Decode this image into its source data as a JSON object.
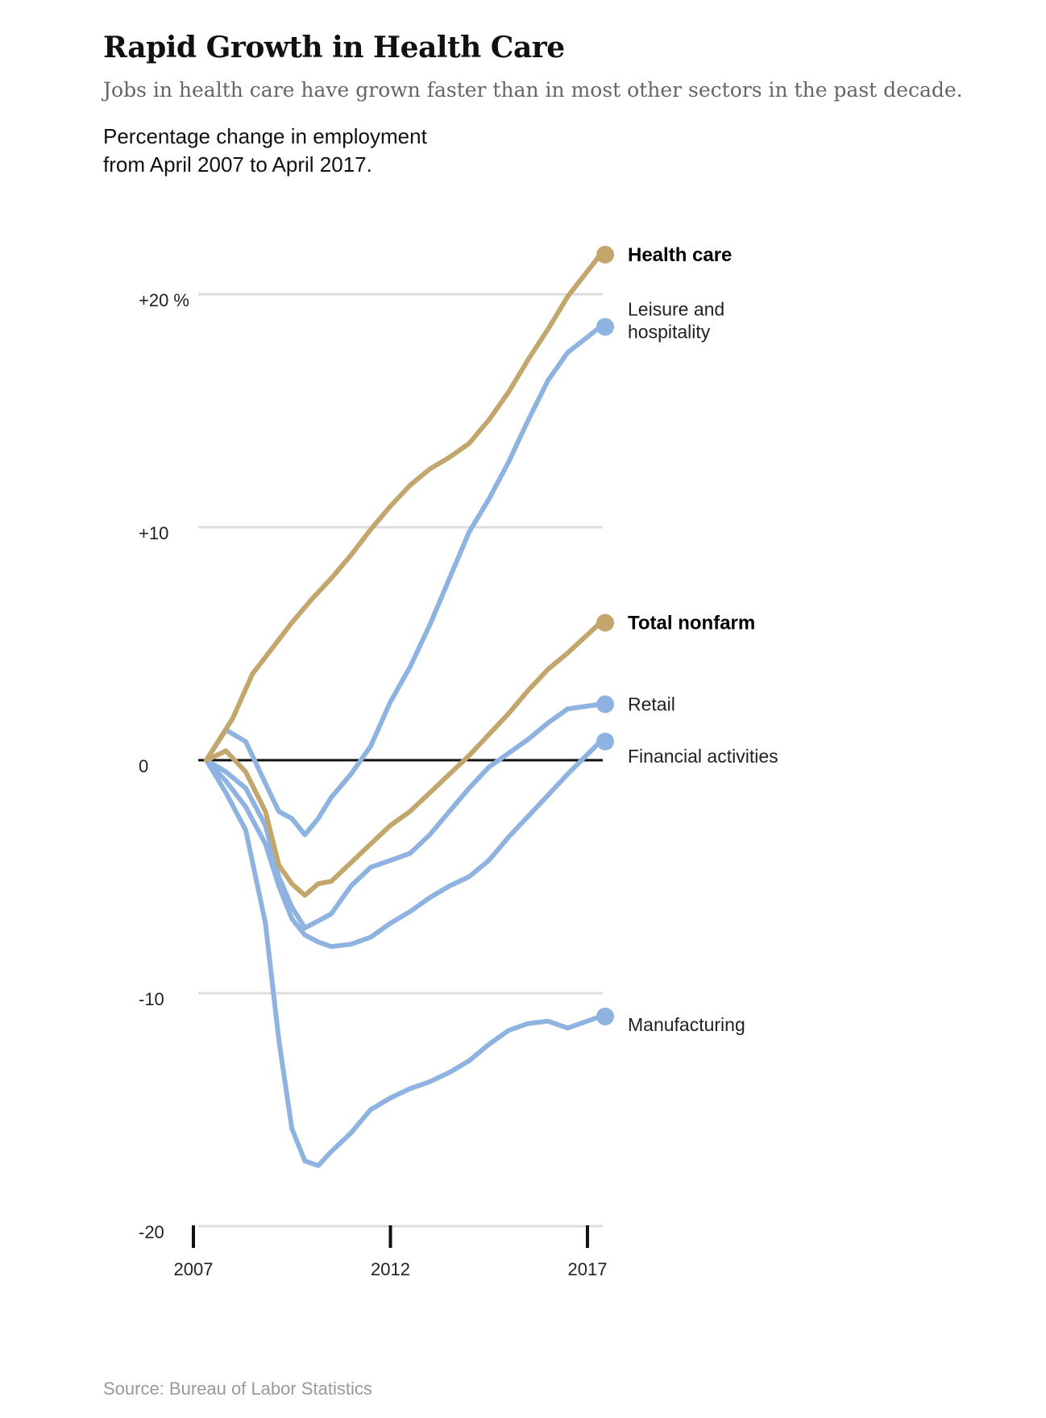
{
  "header": {
    "title": "Rapid Growth in Health Care",
    "subtitle": "Jobs in health care have grown faster than in most other sectors in the past decade.",
    "description_line1": "Percentage change in employment",
    "description_line2": "from April 2007 to April 2017."
  },
  "footer": {
    "source": "Source: Bureau of Labor Statistics"
  },
  "colors": {
    "highlight": "#c2a66c",
    "other": "#8fb3e0",
    "grid": "#dddddd",
    "zero_line": "#111111"
  },
  "chart_data": {
    "type": "line",
    "title": "Rapid Growth in Health Care",
    "subtitle": "Percentage change in employment from April 2007 to April 2017.",
    "xlabel": "",
    "ylabel": "",
    "xlim": [
      2007.33,
      2017.33
    ],
    "ylim": [
      -20,
      22
    ],
    "y_ticks": [
      {
        "value": 20,
        "label": "+20 %"
      },
      {
        "value": 10,
        "label": "+10"
      },
      {
        "value": 0,
        "label": "0"
      },
      {
        "value": -10,
        "label": "-10"
      },
      {
        "value": -20,
        "label": "-20"
      }
    ],
    "x_ticks": [
      {
        "value": 2007,
        "label": "2007"
      },
      {
        "value": 2012,
        "label": "2012"
      },
      {
        "value": 2017,
        "label": "2017"
      }
    ],
    "grid": true,
    "legend": "direct labels at right end of lines",
    "series": [
      {
        "name": "Health care",
        "bold": true,
        "color": "#c2a66c",
        "x": [
          2007.33,
          2008.0,
          2008.5,
          2009.0,
          2009.5,
          2010.0,
          2010.5,
          2011.0,
          2011.5,
          2012.0,
          2012.5,
          2013.0,
          2013.5,
          2014.0,
          2014.5,
          2015.0,
          2015.5,
          2016.0,
          2016.5,
          2017.33
        ],
        "values": [
          0,
          1.8,
          3.7,
          4.8,
          5.9,
          6.9,
          7.8,
          8.8,
          9.9,
          10.9,
          11.8,
          12.5,
          13.0,
          13.6,
          14.6,
          15.8,
          17.2,
          18.5,
          19.9,
          21.7
        ]
      },
      {
        "name": "Leisure and hospitality",
        "bold": false,
        "color": "#8fb3e0",
        "x": [
          2007.33,
          2007.83,
          2008.33,
          2008.83,
          2009.17,
          2009.5,
          2009.83,
          2010.17,
          2010.5,
          2011.0,
          2011.5,
          2012.0,
          2012.5,
          2013.0,
          2013.5,
          2014.0,
          2014.5,
          2015.0,
          2015.5,
          2016.0,
          2016.5,
          2017.33
        ],
        "values": [
          0,
          1.3,
          0.8,
          -1.0,
          -2.2,
          -2.5,
          -3.2,
          -2.5,
          -1.6,
          -0.6,
          0.6,
          2.5,
          4.0,
          5.8,
          7.8,
          9.8,
          11.2,
          12.8,
          14.6,
          16.3,
          17.5,
          18.6
        ]
      },
      {
        "name": "Total nonfarm",
        "bold": true,
        "color": "#c2a66c",
        "x": [
          2007.33,
          2007.83,
          2008.33,
          2008.83,
          2009.17,
          2009.5,
          2009.83,
          2010.17,
          2010.5,
          2011.0,
          2011.5,
          2012.0,
          2012.5,
          2013.0,
          2013.5,
          2014.0,
          2014.5,
          2015.0,
          2015.5,
          2016.0,
          2016.5,
          2017.33
        ],
        "values": [
          0,
          0.4,
          -0.5,
          -2.2,
          -4.5,
          -5.3,
          -5.8,
          -5.3,
          -5.2,
          -4.4,
          -3.6,
          -2.8,
          -2.2,
          -1.4,
          -0.6,
          0.2,
          1.1,
          2.0,
          3.0,
          3.9,
          4.6,
          5.9
        ]
      },
      {
        "name": "Retail",
        "bold": false,
        "color": "#8fb3e0",
        "x": [
          2007.33,
          2007.83,
          2008.33,
          2008.83,
          2009.17,
          2009.5,
          2009.83,
          2010.17,
          2010.5,
          2011.0,
          2011.5,
          2012.0,
          2012.5,
          2013.0,
          2013.5,
          2014.0,
          2014.5,
          2015.0,
          2015.5,
          2016.0,
          2016.5,
          2017.33
        ],
        "values": [
          0,
          -0.5,
          -1.2,
          -2.8,
          -5.0,
          -6.3,
          -7.2,
          -6.9,
          -6.6,
          -5.4,
          -4.6,
          -4.3,
          -4.0,
          -3.2,
          -2.2,
          -1.2,
          -0.3,
          0.3,
          0.9,
          1.6,
          2.2,
          2.4
        ]
      },
      {
        "name": "Financial activities",
        "bold": false,
        "color": "#8fb3e0",
        "x": [
          2007.33,
          2007.83,
          2008.33,
          2008.83,
          2009.17,
          2009.5,
          2009.83,
          2010.17,
          2010.5,
          2011.0,
          2011.5,
          2012.0,
          2012.5,
          2013.0,
          2013.5,
          2014.0,
          2014.5,
          2015.0,
          2015.5,
          2016.0,
          2016.5,
          2017.33
        ],
        "values": [
          0,
          -0.9,
          -2.0,
          -3.6,
          -5.4,
          -6.8,
          -7.5,
          -7.8,
          -8.0,
          -7.9,
          -7.6,
          -7.0,
          -6.5,
          -5.9,
          -5.4,
          -5.0,
          -4.3,
          -3.3,
          -2.4,
          -1.5,
          -0.6,
          0.8
        ]
      },
      {
        "name": "Manufacturing",
        "bold": false,
        "color": "#8fb3e0",
        "x": [
          2007.33,
          2007.83,
          2008.33,
          2008.83,
          2009.17,
          2009.5,
          2009.83,
          2010.17,
          2010.5,
          2011.0,
          2011.5,
          2012.0,
          2012.5,
          2013.0,
          2013.5,
          2014.0,
          2014.5,
          2015.0,
          2015.5,
          2016.0,
          2016.5,
          2017.33
        ],
        "values": [
          0,
          -1.4,
          -3.0,
          -7.0,
          -12.0,
          -15.8,
          -17.2,
          -17.4,
          -16.8,
          -16.0,
          -15.0,
          -14.5,
          -14.1,
          -13.8,
          -13.4,
          -12.9,
          -12.2,
          -11.6,
          -11.3,
          -11.2,
          -11.5,
          -11.0
        ]
      }
    ]
  }
}
